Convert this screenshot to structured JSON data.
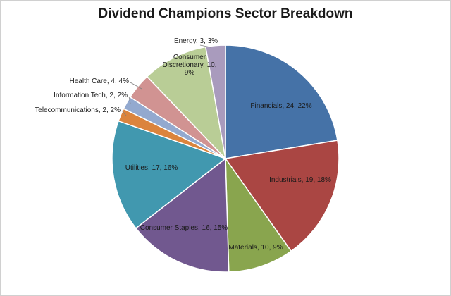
{
  "chart_data": {
    "type": "pie",
    "title": "Dividend Champions Sector Breakdown",
    "legend": "none",
    "slices": [
      {
        "name": "Financials",
        "value": 24,
        "percent": "22%",
        "label": "Financials, 24, 22%",
        "color": "#4572a7"
      },
      {
        "name": "Industrials",
        "value": 19,
        "percent": "18%",
        "label": "Industrials, 19, 18%",
        "color": "#aa4643"
      },
      {
        "name": "Materials",
        "value": 10,
        "percent": "9%",
        "label": "Materials, 10, 9%",
        "color": "#89a54e"
      },
      {
        "name": "Consumer Staples",
        "value": 16,
        "percent": "15%",
        "label": "Consumer Staples, 16, 15%",
        "color": "#71588f"
      },
      {
        "name": "Utilities",
        "value": 17,
        "percent": "16%",
        "label": "Utilities, 17, 16%",
        "color": "#4198af"
      },
      {
        "name": "Telecommunications",
        "value": 2,
        "percent": "2%",
        "label": "Telecommunications, 2, 2%",
        "color": "#db843d"
      },
      {
        "name": "Information Tech",
        "value": 2,
        "percent": "2%",
        "label": "Information Tech, 2, 2%",
        "color": "#93a9cf"
      },
      {
        "name": "Health Care",
        "value": 4,
        "percent": "4%",
        "label": "Health Care, 4, 4%",
        "color": "#d19392"
      },
      {
        "name": "Consumer Discretionary",
        "value": 10,
        "percent": "9%",
        "label": "Consumer Discretionary, 10, 9%",
        "label_lines": [
          "Consumer",
          "Discretionary, 10,",
          "9%"
        ],
        "color": "#b9cd96"
      },
      {
        "name": "Energy",
        "value": 3,
        "percent": "3%",
        "label": "Energy, 3, 3%",
        "color": "#a99bbd"
      }
    ]
  }
}
